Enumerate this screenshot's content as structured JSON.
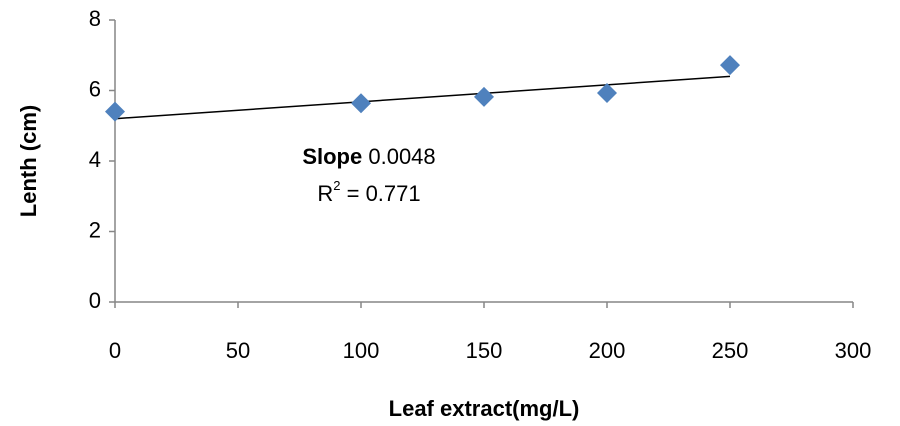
{
  "chart_data": {
    "type": "scatter",
    "x_label": "Leaf extract(mg/L)",
    "y_label": "Lenth (cm)",
    "x": [
      0,
      100,
      150,
      200,
      250
    ],
    "values": [
      5.4,
      5.64,
      5.82,
      5.93,
      6.72
    ],
    "color": "#4f81bd",
    "trendline": {
      "x": [
        0,
        250
      ],
      "values": [
        5.2,
        6.4
      ],
      "color": "#000000"
    },
    "annotation": {
      "slope_label": "Slope",
      "slope_value": "0.0048",
      "r2_base": "R",
      "r2_sup": "2",
      "r2_text": "= 0.771"
    },
    "xlim": [
      0,
      300
    ],
    "xticks": [
      0,
      50,
      100,
      150,
      200,
      250,
      300
    ],
    "ylim": [
      0,
      8
    ],
    "yticks": [
      0,
      2,
      4,
      6,
      8
    ],
    "grid": false
  }
}
